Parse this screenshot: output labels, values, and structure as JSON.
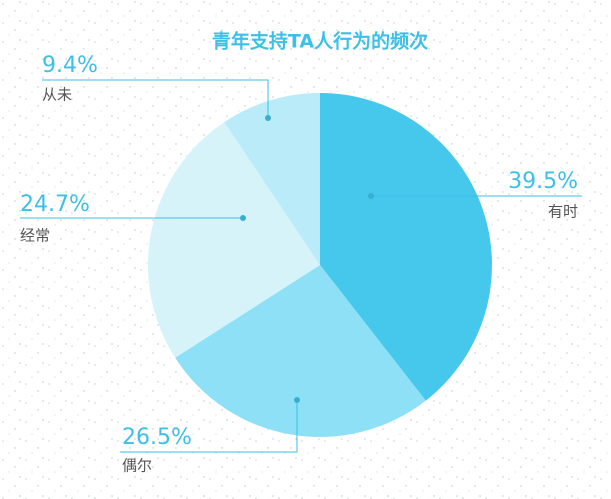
{
  "chart_data": {
    "type": "pie",
    "title": "青年支持TA人行为的频次",
    "categories": [
      "有时",
      "偶尔",
      "经常",
      "从未"
    ],
    "values": [
      39.5,
      26.5,
      24.7,
      9.4
    ],
    "value_labels": [
      "39.5%",
      "26.5%",
      "24.7%",
      "9.4%"
    ],
    "colors": [
      "#45c8ec",
      "#8de0f6",
      "#d6f3fa",
      "#b9ebf8"
    ]
  }
}
